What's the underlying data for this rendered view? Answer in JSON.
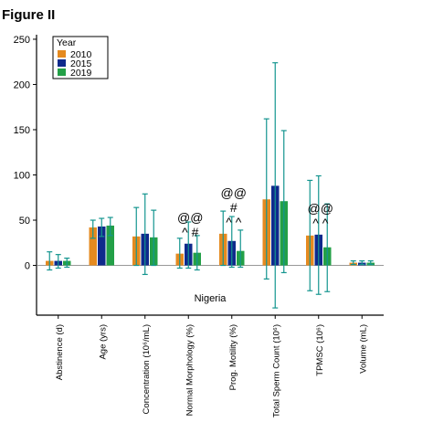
{
  "figure_label": "Figure II",
  "chart_data": {
    "type": "bar",
    "title": "",
    "xlabel": "",
    "ylabel": "",
    "annotation_region": "Nigeria",
    "ylim": [
      -55,
      255
    ],
    "yticks": [
      0,
      50,
      100,
      150,
      200,
      250
    ],
    "grid": false,
    "legend": {
      "title": "Year",
      "placement": "top-left"
    },
    "categories": [
      "Abstinence (d)",
      "Age (yrs)",
      "Concentration (10⁶/mL)",
      "Normal Morphology (%)",
      "Prog. Motility (%)",
      "Total Sperm Count (10⁶)",
      "TPMSC (10⁶)",
      "Volume (mL)"
    ],
    "series": [
      {
        "name": "2010",
        "color": "#e58a1f",
        "values": [
          5,
          42,
          32,
          13,
          35,
          73,
          33,
          3
        ],
        "err_low": [
          -5,
          30,
          0,
          -3,
          0,
          -15,
          -28,
          1
        ],
        "err_high": [
          15,
          50,
          64,
          30,
          60,
          162,
          94,
          5
        ]
      },
      {
        "name": "2015",
        "color": "#0f2a8c",
        "values": [
          5,
          43,
          35,
          24,
          27,
          88,
          34,
          3
        ],
        "err_low": [
          -3,
          32,
          -10,
          -3,
          -2,
          -47,
          -32,
          1
        ],
        "err_high": [
          12,
          52,
          79,
          48,
          54,
          224,
          99,
          5
        ]
      },
      {
        "name": "2019",
        "color": "#23a047",
        "values": [
          5,
          44,
          31,
          14,
          16,
          71,
          20,
          3
        ],
        "err_low": [
          -2,
          33,
          0,
          -5,
          -2,
          -8,
          -29,
          1
        ],
        "err_high": [
          8,
          53,
          61,
          33,
          39,
          149,
          68,
          5
        ]
      }
    ],
    "annotations": [
      {
        "category": "Normal Morphology (%)",
        "lines": [
          "@@",
          "^ #"
        ]
      },
      {
        "category": "Prog. Motility (%)",
        "lines": [
          "@@",
          "#",
          "^ ^"
        ]
      },
      {
        "category": "TPMSC (10⁶)",
        "lines": [
          "@@",
          "^ ^"
        ]
      }
    ]
  }
}
